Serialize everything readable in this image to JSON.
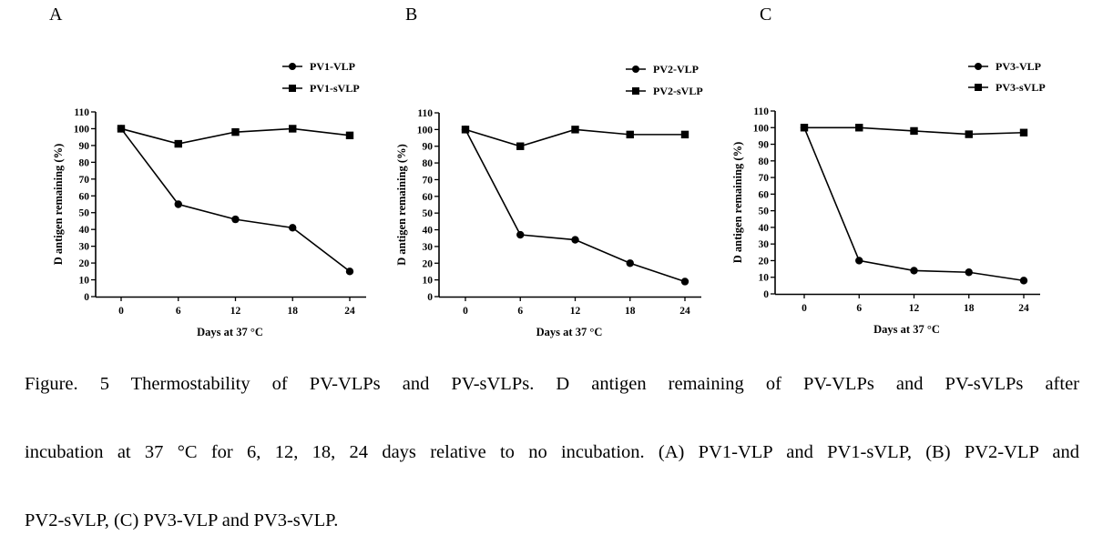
{
  "chart_data": [
    {
      "type": "line",
      "panel_label": "A",
      "x": [
        0,
        6,
        12,
        18,
        24
      ],
      "xlabel": "Days at 37 °C",
      "ylabel": "D antigen remaining (%)",
      "ylim": [
        0,
        110
      ],
      "yticks": [
        0,
        10,
        20,
        30,
        40,
        50,
        60,
        70,
        80,
        90,
        100,
        110
      ],
      "legend_position": "top-right",
      "grid": false,
      "series": [
        {
          "name": "PV1-VLP",
          "marker": "circle",
          "values": [
            100,
            55,
            46,
            41,
            15
          ]
        },
        {
          "name": "PV1-sVLP",
          "marker": "square",
          "values": [
            100,
            91,
            98,
            100,
            96
          ]
        }
      ]
    },
    {
      "type": "line",
      "panel_label": "B",
      "x": [
        0,
        6,
        12,
        18,
        24
      ],
      "xlabel": "Days at 37 °C",
      "ylabel": "D antigen remaining (%)",
      "ylim": [
        0,
        110
      ],
      "yticks": [
        0,
        10,
        20,
        30,
        40,
        50,
        60,
        70,
        80,
        90,
        100,
        110
      ],
      "legend_position": "top-right",
      "grid": false,
      "series": [
        {
          "name": "PV2-VLP",
          "marker": "circle",
          "values": [
            100,
            37,
            34,
            20,
            9
          ]
        },
        {
          "name": "PV2-sVLP",
          "marker": "square",
          "values": [
            100,
            90,
            100,
            97,
            97
          ]
        }
      ]
    },
    {
      "type": "line",
      "panel_label": "C",
      "x": [
        0,
        6,
        12,
        18,
        24
      ],
      "xlabel": "Days at 37 °C",
      "ylabel": "D antigen remaining (%)",
      "ylim": [
        0,
        110
      ],
      "yticks": [
        0,
        10,
        20,
        30,
        40,
        50,
        60,
        70,
        80,
        90,
        100,
        110
      ],
      "legend_position": "top-right",
      "grid": false,
      "series": [
        {
          "name": "PV3-VLP",
          "marker": "circle",
          "values": [
            100,
            20,
            14,
            13,
            8
          ]
        },
        {
          "name": "PV3-sVLP",
          "marker": "square",
          "values": [
            100,
            100,
            98,
            96,
            97
          ]
        }
      ]
    }
  ],
  "caption": {
    "line1": "Figure. 5 Thermostability of PV-VLPs and PV-sVLPs. D antigen remaining of PV-VLPs and PV-sVLPs after",
    "line2": "incubation at 37 °C for 6, 12, 18, 24 days relative to no incubation. (A) PV1-VLP and PV1-sVLP, (B) PV2-VLP and",
    "line3": "PV2-sVLP, (C) PV3-VLP and PV3-sVLP."
  }
}
